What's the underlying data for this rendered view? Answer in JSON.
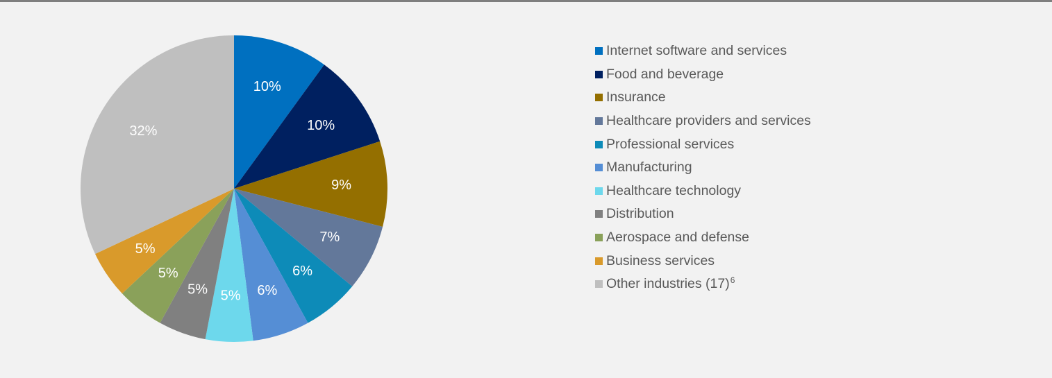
{
  "chart_data": {
    "type": "pie",
    "title": "",
    "slices": [
      {
        "label": "Internet software and services",
        "value": 10,
        "display": "10%",
        "color": "#0070c0"
      },
      {
        "label": "Food and beverage",
        "value": 10,
        "display": "10%",
        "color": "#002060"
      },
      {
        "label": "Insurance",
        "value": 9,
        "display": "9%",
        "color": "#946f00"
      },
      {
        "label": "Healthcare providers and services",
        "value": 7,
        "display": "7%",
        "color": "#63789a"
      },
      {
        "label": "Professional services",
        "value": 6,
        "display": "6%",
        "color": "#0d8bb8"
      },
      {
        "label": "Manufacturing",
        "value": 6,
        "display": "6%",
        "color": "#558ed5"
      },
      {
        "label": "Healthcare technology",
        "value": 5,
        "display": "5%",
        "color": "#6dd8ec"
      },
      {
        "label": "Distribution",
        "value": 5,
        "display": "5%",
        "color": "#808080"
      },
      {
        "label": "Aerospace and defense",
        "value": 5,
        "display": "5%",
        "color": "#8aa15a"
      },
      {
        "label": "Business services",
        "value": 5,
        "display": "5%",
        "color": "#d99a2b"
      },
      {
        "label": "Other industries (17)",
        "superscript": "6",
        "value": 32,
        "display": "32%",
        "color": "#bfbfbf"
      }
    ],
    "label_color": "#ffffff",
    "legend_position": "right"
  }
}
